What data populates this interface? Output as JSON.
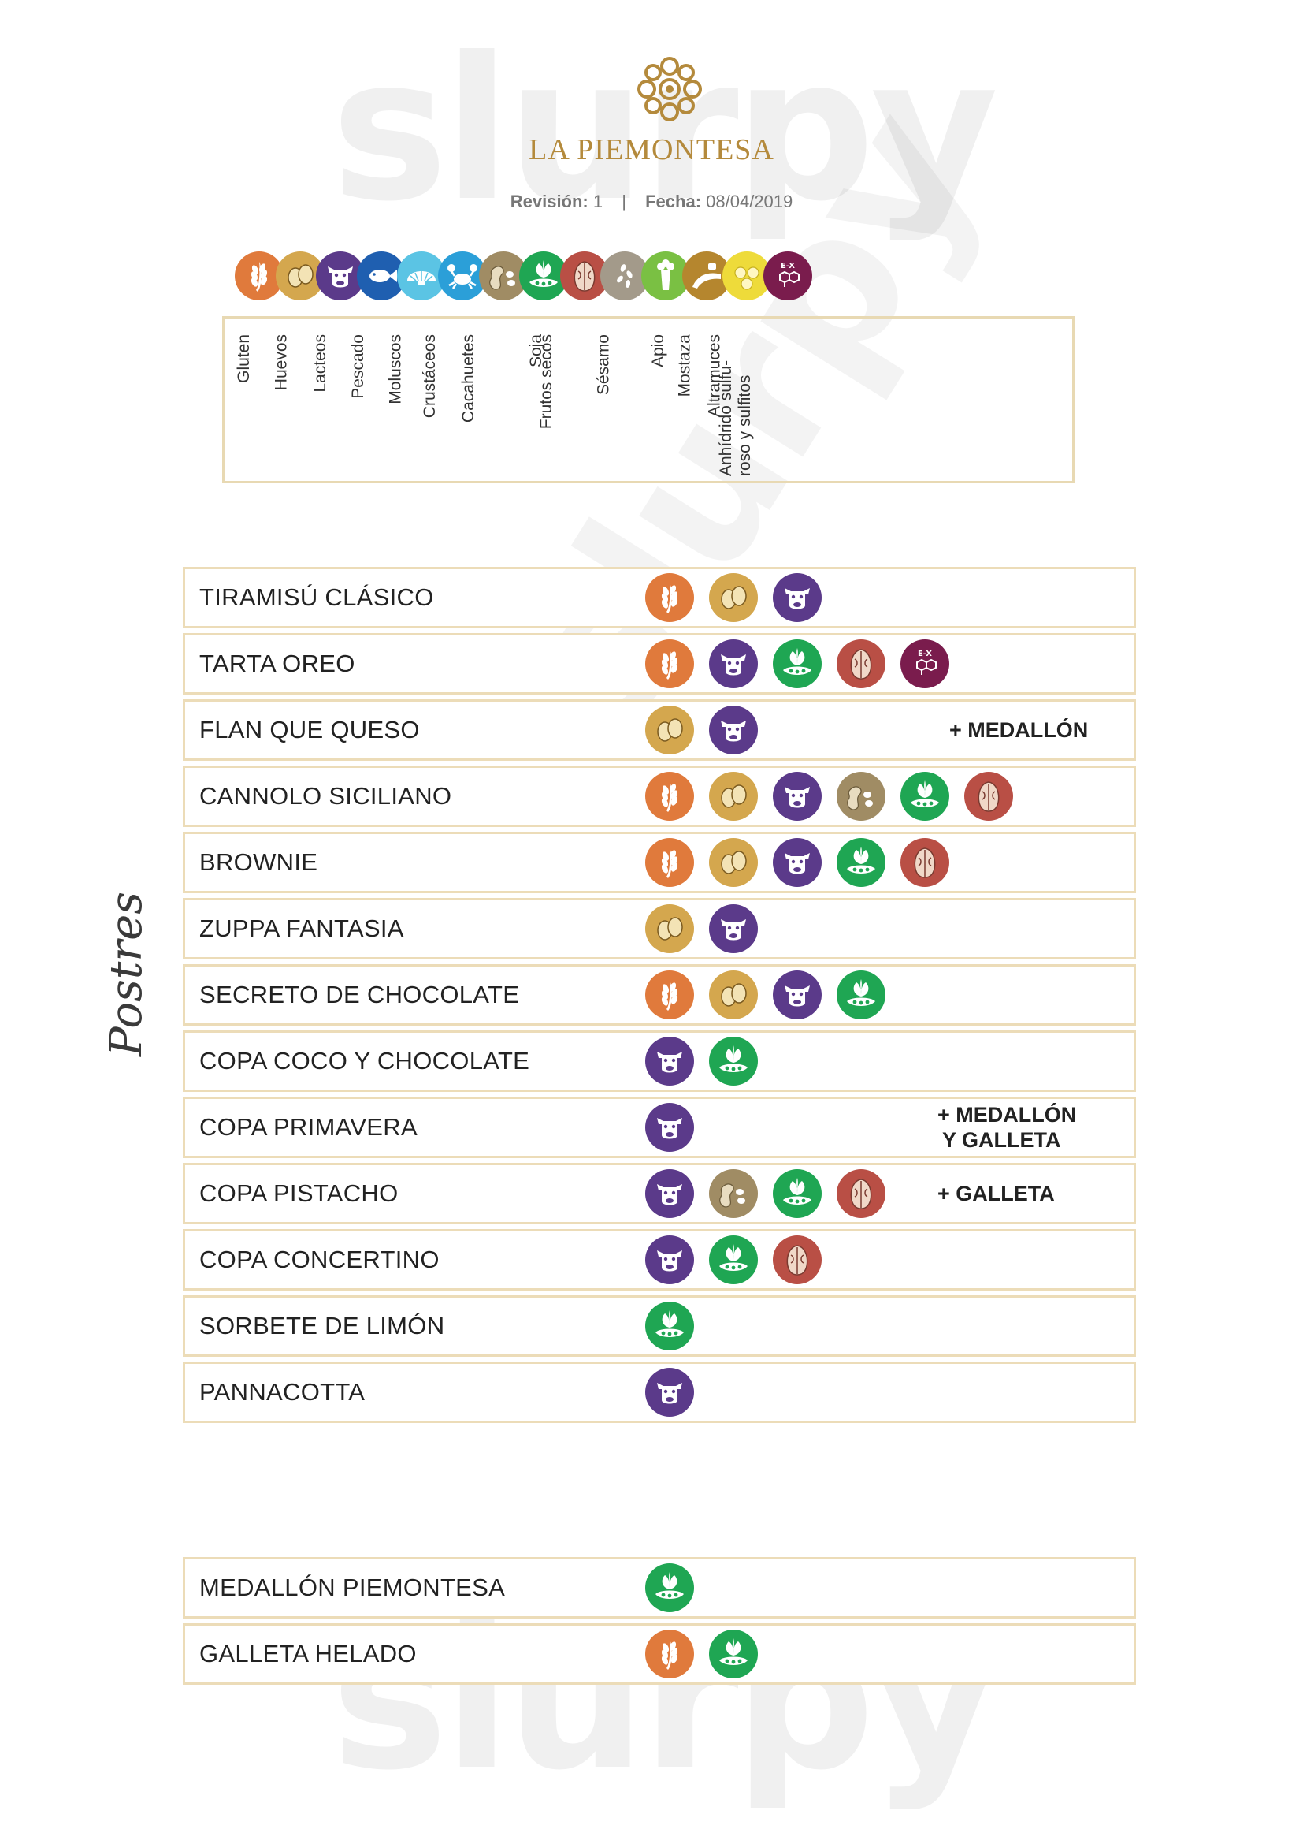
{
  "header": {
    "brand": "LA PIEMONTESA",
    "revision_label": "Revisión:",
    "revision_value": "1",
    "date_label": "Fecha:",
    "date_value": "08/04/2019"
  },
  "allergens": [
    {
      "key": "gluten",
      "name": "Gluten",
      "icon": "wheat-icon",
      "color": "#e07a3c"
    },
    {
      "key": "huevos",
      "name": "Huevos",
      "icon": "eggs-icon",
      "color": "#d4a74e"
    },
    {
      "key": "lacteos",
      "name": "Lacteos",
      "icon": "cow-icon",
      "color": "#5b3a8a"
    },
    {
      "key": "pescado",
      "name": "Pescado",
      "icon": "fish-icon",
      "color": "#1f5fb0"
    },
    {
      "key": "moluscos",
      "name": "Moluscos",
      "icon": "shell-icon",
      "color": "#5bc4e4"
    },
    {
      "key": "crustaceos",
      "name": "Crustáceos",
      "icon": "crab-icon",
      "color": "#2b9fd8"
    },
    {
      "key": "cacahuetes",
      "name": "Cacahuetes",
      "icon": "peanut-icon",
      "color": "#a08c64"
    },
    {
      "key": "soja",
      "name": "Soja",
      "icon": "soy-icon",
      "color": "#1fa653"
    },
    {
      "key": "frutos_secos",
      "name": "Frutos secos",
      "icon": "walnut-icon",
      "color": "#b94f45"
    },
    {
      "key": "sesamo",
      "name": "Sésamo",
      "icon": "sesame-icon",
      "color": "#a39a8a"
    },
    {
      "key": "apio",
      "name": "Apio",
      "icon": "celery-icon",
      "color": "#7ac043"
    },
    {
      "key": "mostaza",
      "name": "Mostaza",
      "icon": "mustard-icon",
      "color": "#b5862e"
    },
    {
      "key": "altramuces",
      "name": "Altramuces",
      "icon": "lupin-icon",
      "color": "#eedb3a"
    },
    {
      "key": "sulfitos",
      "name": "Anhídrido sulfu- roso y sulfitos",
      "name_line1": "Anhídrido sulfu-",
      "name_line2": "roso y sulfitos",
      "icon": "sulphites-icon",
      "color": "#7a1c4d"
    }
  ],
  "section_label": "Postres",
  "desserts": [
    {
      "name": "TIRAMISÚ CLÁSICO",
      "allergens": [
        "gluten",
        "huevos",
        "lacteos"
      ],
      "note": ""
    },
    {
      "name": "TARTA OREO",
      "allergens": [
        "gluten",
        "lacteos",
        "soja",
        "frutos_secos",
        "sulfitos"
      ],
      "note": ""
    },
    {
      "name": "FLAN QUE QUESO",
      "allergens": [
        "huevos",
        "lacteos"
      ],
      "note": "+ MEDALLÓN"
    },
    {
      "name": "CANNOLO SICILIANO",
      "allergens": [
        "gluten",
        "huevos",
        "lacteos",
        "cacahuetes",
        "soja",
        "frutos_secos"
      ],
      "note": ""
    },
    {
      "name": "BROWNIE",
      "allergens": [
        "gluten",
        "huevos",
        "lacteos",
        "soja",
        "frutos_secos"
      ],
      "note": ""
    },
    {
      "name": "ZUPPA FANTASIA",
      "allergens": [
        "huevos",
        "lacteos"
      ],
      "note": ""
    },
    {
      "name": "SECRETO DE CHOCOLATE",
      "allergens": [
        "gluten",
        "huevos",
        "lacteos",
        "soja"
      ],
      "note": ""
    },
    {
      "name": "COPA COCO Y CHOCOLATE",
      "allergens": [
        "lacteos",
        "soja"
      ],
      "note": ""
    },
    {
      "name": "COPA PRIMAVERA",
      "allergens": [
        "lacteos"
      ],
      "note": "+ MEDALLÓN Y GALLETA",
      "note_line1": "+ MEDALLÓN",
      "note_line2": "Y GALLETA"
    },
    {
      "name": "COPA PISTACHO",
      "allergens": [
        "lacteos",
        "cacahuetes",
        "soja",
        "frutos_secos"
      ],
      "note": "+ GALLETA"
    },
    {
      "name": "COPA CONCERTINO",
      "allergens": [
        "lacteos",
        "soja",
        "frutos_secos"
      ],
      "note": ""
    },
    {
      "name": "SORBETE DE LIMÓN",
      "allergens": [
        "soja"
      ],
      "note": ""
    },
    {
      "name": "PANNACOTTA",
      "allergens": [
        "lacteos"
      ],
      "note": ""
    }
  ],
  "extras": [
    {
      "name": "MEDALLÓN PIEMONTESA",
      "allergens": [
        "soja"
      ],
      "note": ""
    },
    {
      "name": "GALLETA HELADO",
      "allergens": [
        "gluten",
        "soja"
      ],
      "note": ""
    }
  ]
}
